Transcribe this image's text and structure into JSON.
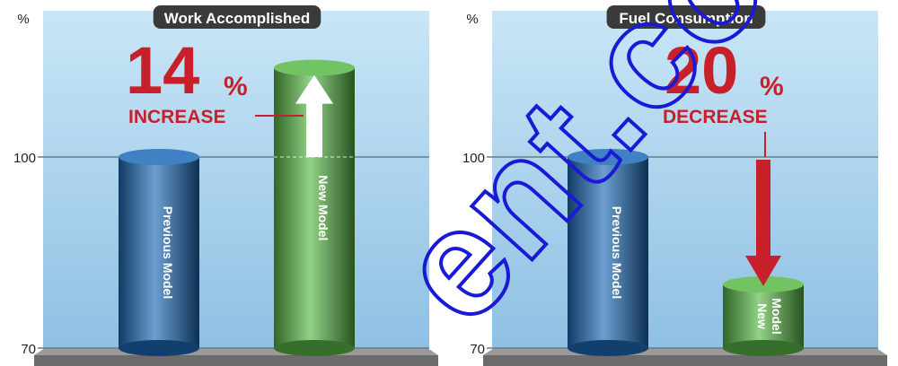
{
  "chart_data": [
    {
      "type": "bar",
      "title": "Work Accomplished",
      "ylabel": "%",
      "yticks": [
        100,
        70
      ],
      "ylim": [
        70,
        125
      ],
      "categories": [
        "Previous Model",
        "New Model"
      ],
      "values": [
        100,
        114
      ],
      "colors": [
        "#1d6bb8",
        "#59b947"
      ],
      "annotation": {
        "value": "14",
        "unit": "%",
        "text": "INCREASE",
        "color": "#c8202b",
        "arrow": "up"
      }
    },
    {
      "type": "bar",
      "title": "Fuel Consumption",
      "ylabel": "%",
      "yticks": [
        100,
        70
      ],
      "ylim": [
        70,
        125
      ],
      "categories": [
        "Previous Model",
        "New Model"
      ],
      "values": [
        100,
        80
      ],
      "colors": [
        "#1d6bb8",
        "#59b947"
      ],
      "annotation": {
        "value": "20",
        "unit": "%",
        "text": "DECREASE",
        "color": "#c8202b",
        "arrow": "down"
      }
    }
  ],
  "watermark": {
    "text": "ent.co",
    "color": "#1a1ad6"
  }
}
